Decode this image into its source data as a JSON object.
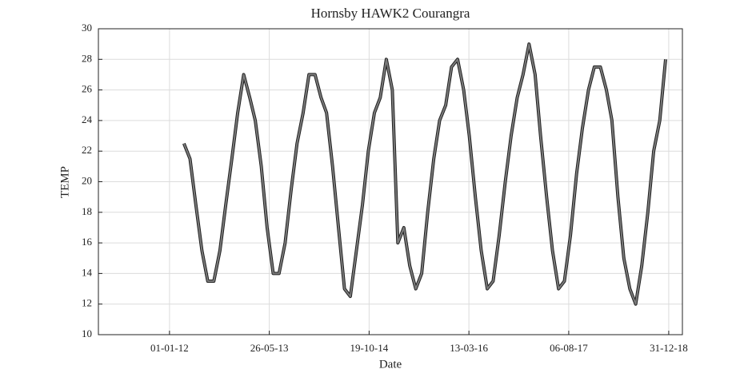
{
  "chart_data": {
    "type": "line",
    "title": "Hornsby HAWK2 Courangra",
    "x_label": "Date",
    "y_label": "TEMP",
    "x": [
      "15-03-12",
      "15-04-12",
      "15-05-12",
      "15-06-12",
      "15-07-12",
      "15-08-12",
      "15-09-12",
      "15-10-12",
      "15-11-12",
      "15-12-12",
      "15-01-13",
      "15-02-13",
      "15-03-13",
      "15-04-13",
      "15-05-13",
      "15-06-13",
      "15-07-13",
      "15-08-13",
      "15-09-13",
      "15-10-13",
      "15-11-13",
      "15-12-13",
      "15-01-14",
      "15-02-14",
      "15-03-14",
      "15-04-14",
      "15-05-14",
      "15-06-14",
      "15-07-14",
      "15-08-14",
      "15-09-14",
      "15-10-14",
      "15-11-14",
      "15-12-14",
      "15-01-15",
      "15-02-15",
      "15-03-15",
      "15-04-15",
      "15-05-15",
      "15-06-15",
      "15-07-15",
      "15-08-15",
      "15-09-15",
      "15-10-15",
      "15-11-15",
      "15-12-15",
      "15-01-16",
      "15-02-16",
      "15-03-16",
      "15-04-16",
      "15-05-16",
      "15-06-16",
      "15-07-16",
      "15-08-16",
      "15-09-16",
      "15-10-16",
      "15-11-16",
      "15-12-16",
      "15-01-17",
      "15-02-17",
      "15-03-17",
      "15-04-17",
      "15-05-17",
      "15-06-17",
      "15-07-17",
      "15-08-17",
      "15-09-17",
      "15-10-17",
      "15-11-17",
      "15-12-17",
      "15-01-18",
      "15-02-18",
      "15-03-18",
      "15-04-18",
      "15-05-18",
      "15-06-18",
      "15-07-18",
      "15-08-18",
      "15-09-18",
      "15-10-18",
      "15-11-18",
      "15-12-18"
    ],
    "series": [
      {
        "name": "TEMP",
        "color": "#7a7a7a",
        "values": [
          22.5,
          21.5,
          18.5,
          15.5,
          13.5,
          13.5,
          15.5,
          18.5,
          21.5,
          24.5,
          27,
          25.5,
          24,
          21,
          17,
          14,
          14,
          16,
          19.5,
          22.5,
          24.5,
          27,
          27,
          25.5,
          24.5,
          21,
          17,
          13,
          12.5,
          15.5,
          18.5,
          22,
          24.5,
          25.5,
          28,
          26,
          16,
          17,
          14.5,
          13,
          14,
          18,
          21.5,
          24,
          25,
          27.5,
          28,
          26,
          23,
          19,
          15.5,
          13,
          13.5,
          16.5,
          20,
          23,
          25.5,
          27,
          29,
          27,
          23,
          19,
          15.5,
          13,
          13.5,
          16.5,
          20.5,
          23.5,
          26,
          27.5,
          27.5,
          26,
          24,
          19,
          15,
          13,
          12,
          14.5,
          18,
          22,
          24,
          28
        ]
      }
    ],
    "xlim": [
      "02-01-11",
      "11-03-19"
    ],
    "xticks": [
      "01-01-12",
      "26-05-13",
      "19-10-14",
      "13-03-16",
      "06-08-17",
      "31-12-18"
    ],
    "ylim": [
      10,
      30
    ],
    "yticks": [
      10,
      12,
      14,
      16,
      18,
      20,
      22,
      24,
      26,
      28,
      30
    ],
    "grid": true
  }
}
